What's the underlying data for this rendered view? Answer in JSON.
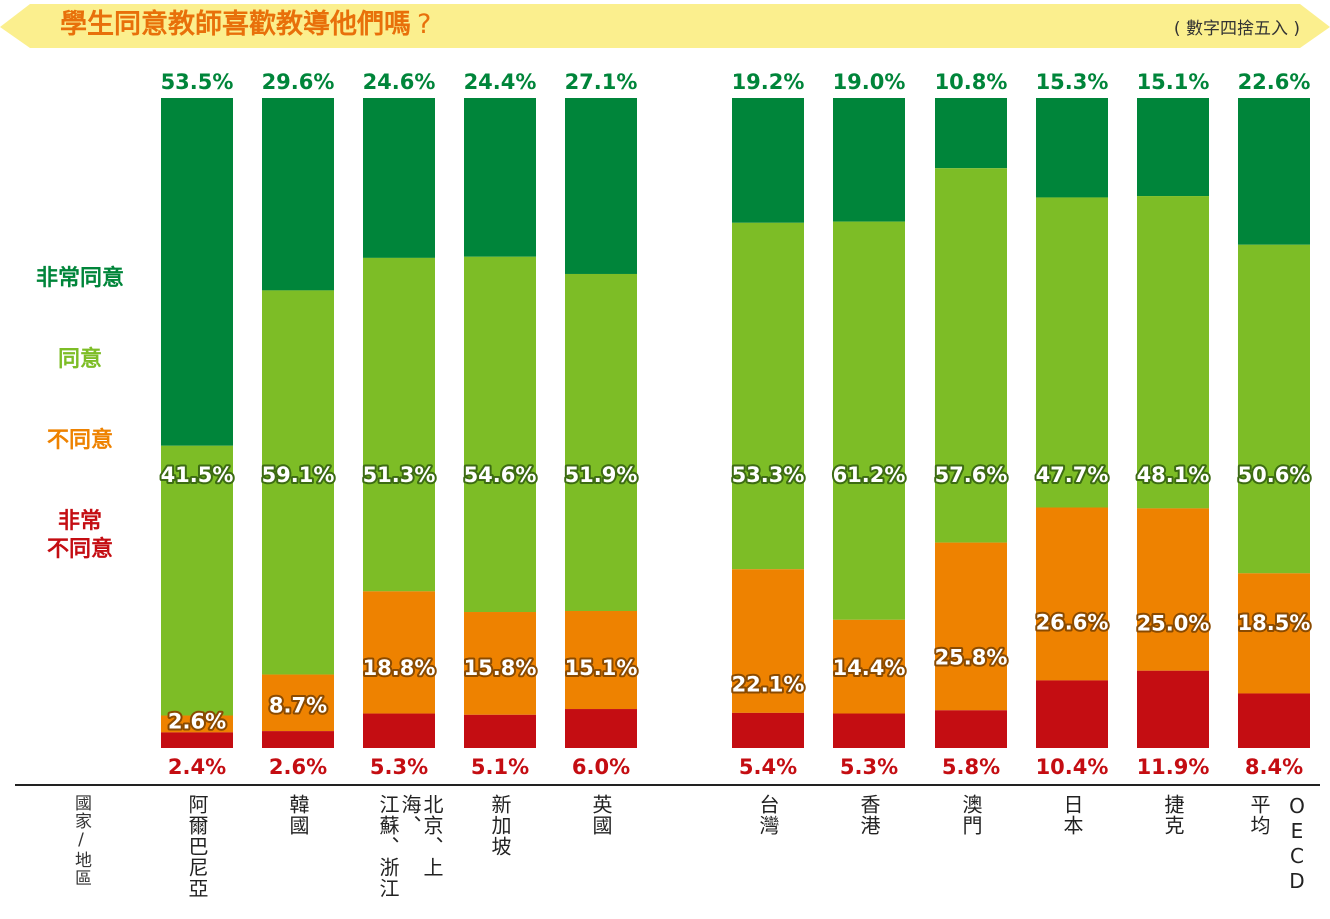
{
  "header": {
    "title": "學生同意教師喜歡教導他們嗎",
    "title_mark": "?",
    "note": "( 數字四捨五入 )"
  },
  "legend": {
    "strongly_agree": "非常同意",
    "agree": "同意",
    "disagree": "不同意",
    "strongly_disagree": "非常\n不同意"
  },
  "axis_label": "國家/地區",
  "colors": {
    "strongly_agree": "#00853a",
    "agree": "#7dbd26",
    "disagree": "#ee8200",
    "strongly_disagree": "#c40d12",
    "banner": "#fbef8e",
    "title": "#e8700a"
  },
  "chart_data": {
    "type": "bar",
    "stacked": true,
    "categories": [
      "阿爾巴尼亞",
      "韓國",
      "北京、上海、江蘇、浙江",
      "新加坡",
      "英國",
      "台灣",
      "香港",
      "澳門",
      "日本",
      "捷克",
      "OECD平均"
    ],
    "category_labels": [
      [
        "阿爾巴尼亞"
      ],
      [
        "韓國"
      ],
      [
        "北京、上海、",
        "江蘇、浙江"
      ],
      [
        "新加坡"
      ],
      [
        "英國"
      ],
      [
        "台灣"
      ],
      [
        "香港"
      ],
      [
        "澳門"
      ],
      [
        "日本"
      ],
      [
        "捷克"
      ],
      [
        "OECD",
        "平均"
      ]
    ],
    "series": [
      {
        "name": "非常同意",
        "key": "strongly_agree",
        "values": [
          53.5,
          29.6,
          24.6,
          24.4,
          27.1,
          19.2,
          19.0,
          10.8,
          15.3,
          15.1,
          22.6
        ]
      },
      {
        "name": "同意",
        "key": "agree",
        "values": [
          41.5,
          59.1,
          51.3,
          54.6,
          51.9,
          53.3,
          61.2,
          57.6,
          47.7,
          48.1,
          50.6
        ]
      },
      {
        "name": "不同意",
        "key": "disagree",
        "values": [
          2.6,
          8.7,
          18.8,
          15.8,
          15.1,
          22.1,
          14.4,
          25.8,
          26.6,
          25.0,
          18.5
        ]
      },
      {
        "name": "非常不同意",
        "key": "strongly_disagree",
        "values": [
          2.4,
          2.6,
          5.3,
          5.1,
          6.0,
          5.4,
          5.3,
          5.8,
          10.4,
          11.9,
          8.4
        ]
      }
    ],
    "value_labels": {
      "strongly_agree": [
        "53.5%",
        "29.6%",
        "24.6%",
        "24.4%",
        "27.1%",
        "19.2%",
        "19.0%",
        "10.8%",
        "15.3%",
        "15.1%",
        "22.6%"
      ],
      "agree": [
        "41.5%",
        "59.1%",
        "51.3%",
        "54.6%",
        "51.9%",
        "53.3%",
        "61.2%",
        "57.6%",
        "47.7%",
        "48.1%",
        "50.6%"
      ],
      "disagree": [
        "2.6%",
        "8.7%",
        "18.8%",
        "15.8%",
        "15.1%",
        "22.1%",
        "14.4%",
        "25.8%",
        "26.6%",
        "25.0%",
        "18.5%"
      ],
      "strongly_disagree": [
        "2.4%",
        "2.6%",
        "5.3%",
        "5.1%",
        "6.0%",
        "5.4%",
        "5.3%",
        "5.8%",
        "10.4%",
        "11.9%",
        "8.4%"
      ]
    },
    "ylim": [
      0,
      100
    ],
    "grid": false,
    "legend_position": "left"
  }
}
